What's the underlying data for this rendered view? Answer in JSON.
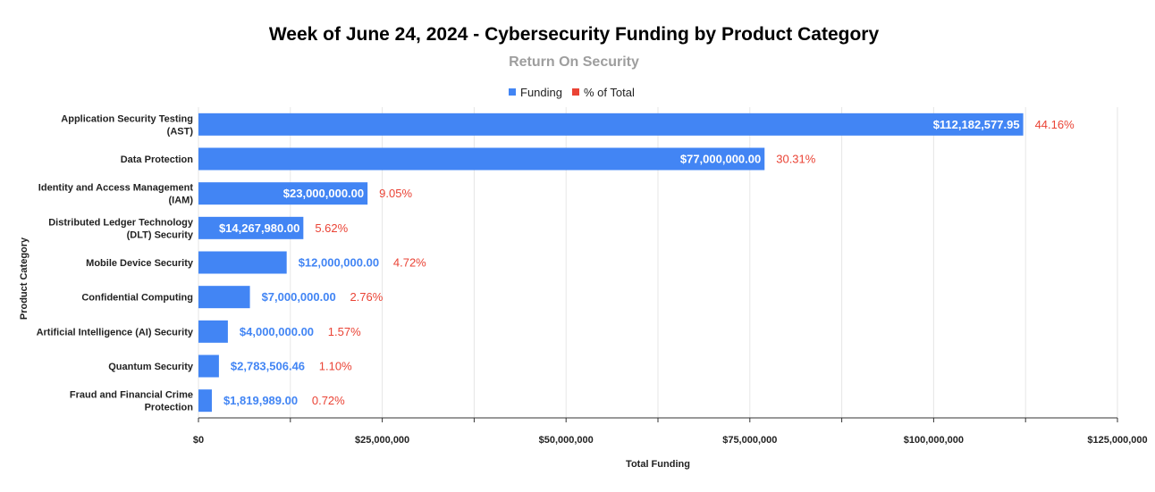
{
  "chart_data": {
    "type": "bar",
    "orientation": "horizontal",
    "title": "Week of June 24, 2024 - Cybersecurity Funding by Product Category",
    "subtitle": "Return On Security",
    "xlabel": "Total Funding",
    "ylabel": "Product Category",
    "xlim": [
      0,
      125000000
    ],
    "x_ticks": [
      0,
      25000000,
      50000000,
      75000000,
      100000000,
      125000000
    ],
    "x_tick_labels": [
      "$0",
      "$25,000,000",
      "$50,000,000",
      "$75,000,000",
      "$100,000,000",
      "$125,000,000"
    ],
    "grid": true,
    "legend_position": "top-center",
    "legend": [
      {
        "name": "Funding",
        "color": "#4285F4"
      },
      {
        "name": "% of Total",
        "color": "#EA4335"
      }
    ],
    "categories": [
      [
        "Application Security Testing",
        "(AST)"
      ],
      [
        "Data Protection"
      ],
      [
        "Identity and Access Management",
        "(IAM)"
      ],
      [
        "Distributed Ledger Technology",
        "(DLT) Security"
      ],
      [
        "Mobile Device Security"
      ],
      [
        "Confidential Computing"
      ],
      [
        "Artificial Intelligence (AI) Security"
      ],
      [
        "Quantum Security"
      ],
      [
        "Fraud and Financial Crime",
        "Protection"
      ]
    ],
    "series": [
      {
        "name": "Funding",
        "color": "#4285F4",
        "values": [
          112182577.95,
          77000000,
          23000000,
          14267980,
          12000000,
          7000000,
          4000000,
          2783506.46,
          1819989
        ],
        "labels": [
          "$112,182,577.95",
          "$77,000,000.00",
          "$23,000,000.00",
          "$14,267,980.00",
          "$12,000,000.00",
          "$7,000,000.00",
          "$4,000,000.00",
          "$2,783,506.46",
          "$1,819,989.00"
        ]
      },
      {
        "name": "% of Total",
        "color": "#EA4335",
        "values": [
          44.16,
          30.31,
          9.05,
          5.62,
          4.72,
          2.76,
          1.57,
          1.1,
          0.72
        ],
        "labels": [
          "44.16%",
          "30.31%",
          "9.05%",
          "5.62%",
          "4.72%",
          "2.76%",
          "1.57%",
          "1.10%",
          "0.72%"
        ]
      }
    ]
  }
}
